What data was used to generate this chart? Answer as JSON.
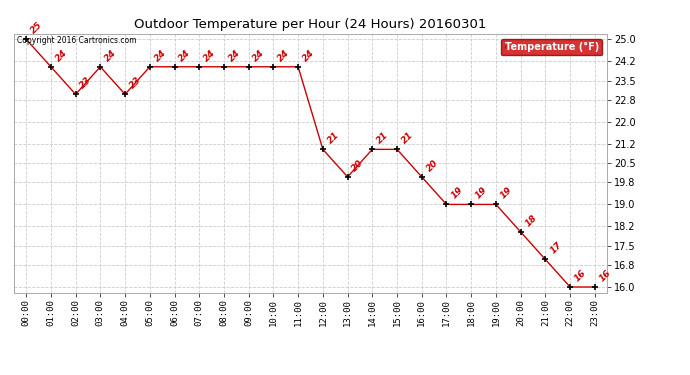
{
  "title": "Outdoor Temperature per Hour (24 Hours) 20160301",
  "copyright": "Copyright 2016 Cartronics.com",
  "legend_label": "Temperature (°F)",
  "hours": [
    "00:00",
    "01:00",
    "02:00",
    "03:00",
    "04:00",
    "05:00",
    "06:00",
    "07:00",
    "08:00",
    "09:00",
    "10:00",
    "11:00",
    "12:00",
    "13:00",
    "14:00",
    "15:00",
    "16:00",
    "17:00",
    "18:00",
    "19:00",
    "20:00",
    "21:00",
    "22:00",
    "23:00"
  ],
  "temperatures": [
    25,
    24,
    23,
    24,
    23,
    24,
    24,
    24,
    24,
    24,
    24,
    24,
    21,
    20,
    21,
    21,
    20,
    19,
    19,
    19,
    18,
    17,
    16,
    16
  ],
  "ylim": [
    15.8,
    25.2
  ],
  "yticks": [
    16.0,
    16.8,
    17.5,
    18.2,
    19.0,
    19.8,
    20.5,
    21.2,
    22.0,
    22.8,
    23.5,
    24.2,
    25.0
  ],
  "line_color": "#cc0000",
  "marker_color": "#000000",
  "label_color": "#cc0000",
  "grid_color": "#cccccc",
  "bg_color": "#ffffff",
  "legend_bg": "#cc0000",
  "legend_fg": "#ffffff"
}
